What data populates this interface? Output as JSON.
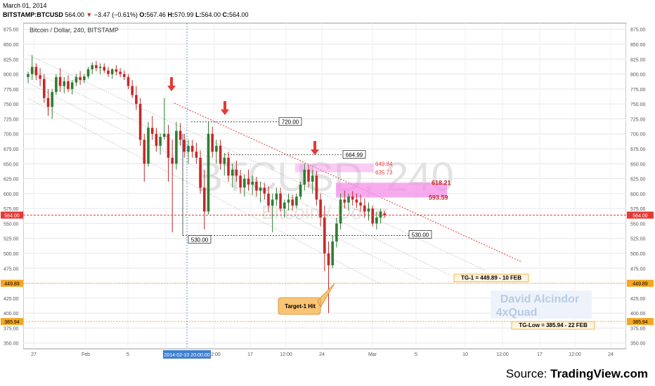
{
  "header": {
    "date": "March 01, 2014",
    "symbol": "BITSTAMP:BTCUSD",
    "last": "564.00",
    "change": "−3.47 (−0.61%)",
    "o_label": "O:",
    "o_value": "567.46",
    "h_label": "H:",
    "h_value": "570.99",
    "l_label": "L:",
    "l_value": "564.00",
    "c_label": "C:",
    "c_value": "564.00"
  },
  "chart_data": {
    "type": "candlestick",
    "title": "Bitcoin / Dollar, 240, BITSTAMP",
    "watermark_symbol": "BTCUSD, 240",
    "watermark_name": "Bitcoin / Dollar",
    "ylim": [
      350,
      885
    ],
    "y_ticks": [
      "350.00",
      "375.00",
      "400.00",
      "425.00",
      "450.00",
      "475.00",
      "500.00",
      "525.00",
      "550.00",
      "575.00",
      "600.00",
      "625.00",
      "650.00",
      "675.00",
      "700.00",
      "725.00",
      "750.00",
      "775.00",
      "800.00",
      "825.00",
      "850.00",
      "875.00"
    ],
    "x_ticks": [
      "27",
      "Feb",
      "5",
      "10",
      "12:00",
      "17",
      "12:00",
      "24",
      "Mar",
      "5",
      "10",
      "12:00",
      "17",
      "12:00",
      "24"
    ],
    "x_cursor_label": "2014-02-10 20:00:00",
    "price_markers": [
      {
        "value": 564.0,
        "label": "564.00",
        "color": "#e53935"
      },
      {
        "value": 449.89,
        "label": "449.89",
        "color": "#f5a623"
      },
      {
        "value": 385.94,
        "label": "385.94",
        "color": "#f5a623"
      }
    ],
    "levels": [
      {
        "value": 720.0,
        "label": "720.00"
      },
      {
        "value": 664.99,
        "label": "664.99"
      },
      {
        "value": 530.0,
        "label": "530.00"
      }
    ],
    "zones": [
      {
        "from": 635.73,
        "to": 649.84,
        "labels": [
          "649.84",
          "635.73"
        ]
      },
      {
        "from": 593.59,
        "to": 618.21,
        "labels": [
          "618.21",
          "593.59"
        ]
      }
    ],
    "targets": [
      {
        "label": "TG-1 = 449.89 - 10 FEB",
        "value": 449.89
      },
      {
        "label": "TG-Low = 385.94 - 22 FEB",
        "value": 385.94
      }
    ],
    "callout": "Target-1 Hit",
    "signature": [
      "David Alcindor",
      "4xQuad"
    ],
    "series": [
      {
        "values": [
          [
            795,
            804,
            785,
            800
          ],
          [
            800,
            832,
            790,
            812
          ],
          [
            812,
            818,
            790,
            798
          ],
          [
            798,
            810,
            780,
            792
          ],
          [
            792,
            800,
            752,
            760
          ],
          [
            760,
            775,
            730,
            745
          ],
          [
            745,
            775,
            725,
            770
          ],
          [
            770,
            800,
            765,
            795
          ],
          [
            795,
            810,
            770,
            780
          ],
          [
            780,
            795,
            768,
            788
          ],
          [
            788,
            798,
            770,
            775
          ],
          [
            775,
            790,
            766,
            786
          ],
          [
            786,
            800,
            780,
            795
          ],
          [
            795,
            805,
            782,
            790
          ],
          [
            790,
            800,
            785,
            796
          ],
          [
            796,
            812,
            792,
            808
          ],
          [
            808,
            820,
            800,
            815
          ],
          [
            815,
            822,
            805,
            810
          ],
          [
            810,
            818,
            800,
            812
          ],
          [
            812,
            818,
            802,
            806
          ],
          [
            806,
            812,
            795,
            800
          ],
          [
            800,
            810,
            792,
            808
          ],
          [
            808,
            815,
            798,
            804
          ],
          [
            804,
            810,
            795,
            800
          ],
          [
            800,
            806,
            790,
            795
          ],
          [
            795,
            800,
            775,
            780
          ],
          [
            780,
            790,
            760,
            765
          ],
          [
            765,
            780,
            740,
            750
          ],
          [
            750,
            760,
            680,
            690
          ],
          [
            690,
            700,
            620,
            650
          ],
          [
            650,
            720,
            645,
            710
          ],
          [
            710,
            730,
            690,
            700
          ],
          [
            700,
            710,
            670,
            680
          ],
          [
            680,
            700,
            665,
            695
          ],
          [
            695,
            760,
            690,
            700
          ],
          [
            700,
            715,
            620,
            660
          ],
          [
            660,
            690,
            535,
            650
          ],
          [
            650,
            720,
            640,
            705
          ],
          [
            705,
            718,
            680,
            690
          ],
          [
            690,
            700,
            660,
            670
          ],
          [
            670,
            690,
            650,
            680
          ],
          [
            680,
            690,
            660,
            670
          ],
          [
            670,
            685,
            650,
            660
          ],
          [
            660,
            672,
            600,
            610
          ],
          [
            610,
            640,
            540,
            570
          ],
          [
            570,
            720,
            565,
            700
          ],
          [
            700,
            712,
            660,
            670
          ],
          [
            670,
            690,
            650,
            680
          ],
          [
            680,
            690,
            640,
            650
          ],
          [
            650,
            668,
            630,
            660
          ],
          [
            660,
            670,
            620,
            630
          ],
          [
            630,
            650,
            610,
            640
          ],
          [
            640,
            655,
            620,
            630
          ],
          [
            630,
            640,
            600,
            610
          ],
          [
            610,
            632,
            595,
            625
          ],
          [
            625,
            640,
            605,
            615
          ],
          [
            615,
            630,
            598,
            620
          ],
          [
            620,
            628,
            595,
            605
          ],
          [
            605,
            620,
            585,
            610
          ],
          [
            610,
            618,
            590,
            600
          ],
          [
            600,
            612,
            570,
            580
          ],
          [
            580,
            600,
            535,
            590
          ],
          [
            590,
            610,
            580,
            600
          ],
          [
            600,
            610,
            570,
            575
          ],
          [
            575,
            590,
            560,
            585
          ],
          [
            585,
            600,
            572,
            590
          ],
          [
            590,
            598,
            572,
            580
          ],
          [
            580,
            600,
            575,
            595
          ],
          [
            595,
            620,
            590,
            615
          ],
          [
            615,
            650,
            605,
            640
          ],
          [
            640,
            648,
            610,
            620
          ],
          [
            620,
            640,
            600,
            630
          ],
          [
            630,
            638,
            580,
            590
          ],
          [
            590,
            600,
            545,
            560
          ],
          [
            560,
            580,
            470,
            500
          ],
          [
            500,
            520,
            400,
            480
          ],
          [
            480,
            530,
            475,
            520
          ],
          [
            520,
            560,
            510,
            550
          ],
          [
            550,
            600,
            540,
            590
          ],
          [
            590,
            605,
            575,
            585
          ],
          [
            585,
            600,
            572,
            595
          ],
          [
            595,
            604,
            580,
            590
          ],
          [
            590,
            600,
            576,
            585
          ],
          [
            585,
            598,
            570,
            580
          ],
          [
            580,
            592,
            560,
            570
          ],
          [
            570,
            585,
            555,
            575
          ],
          [
            575,
            580,
            545,
            550
          ],
          [
            550,
            570,
            540,
            560
          ],
          [
            560,
            575,
            550,
            570
          ],
          [
            567,
            571,
            560,
            564
          ]
        ]
      }
    ]
  },
  "source": {
    "prefix": "Source: ",
    "brand": "TradingView.com"
  },
  "colors": {
    "up": "#2e7d32",
    "down": "#c62828",
    "grid": "#e6e6e6",
    "marker_red": "#e53935",
    "marker_orange": "#f5a623",
    "zone": "#f48fe8",
    "cursor": "#3f7fd0"
  }
}
